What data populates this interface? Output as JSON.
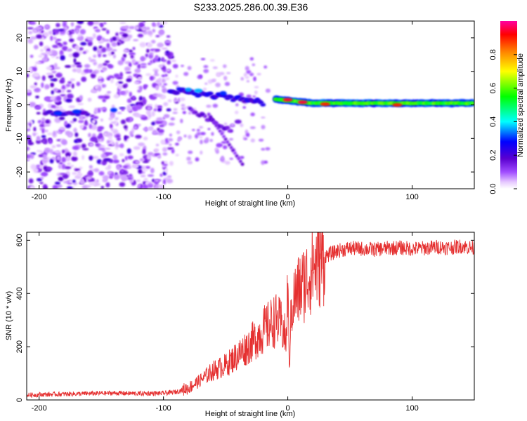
{
  "title": "S233.2025.286.00.39.E36",
  "colors": {
    "snr_line": "#e53030",
    "colormap": [
      "#ffffff",
      "#e6c8ff",
      "#a04cff",
      "#5a00d0",
      "#0000ff",
      "#00ffff",
      "#00ff00",
      "#ffff00",
      "#ff8000",
      "#ff0000",
      "#ff00a0"
    ]
  },
  "chart_data": [
    {
      "type": "heatmap",
      "title": "S233.2025.286.00.39.E36",
      "xlabel": "Height of straight line (km)",
      "ylabel": "Frequency (Hz)",
      "xlim": [
        -210,
        150
      ],
      "ylim": [
        -25,
        25
      ],
      "xticks": [
        -200,
        -100,
        0,
        100
      ],
      "yticks": [
        -20,
        -10,
        0,
        10,
        20
      ],
      "xtick_labels": [
        "-200",
        "-100",
        "0",
        "100"
      ],
      "ytick_labels": [
        "-20",
        "-10",
        "0",
        "10",
        "20"
      ],
      "colorbar": {
        "label": "Normalized spectral amplitude",
        "range": [
          0,
          1
        ],
        "ticks": [
          0.0,
          0.2,
          0.4,
          0.6,
          0.8
        ],
        "tick_labels": [
          "0.0",
          "0.2",
          "0.4",
          "0.6",
          "0.8"
        ]
      },
      "features": [
        {
          "name": "noise-region",
          "x_range": [
            -210,
            -95
          ],
          "y_range": [
            -25,
            25
          ],
          "amplitude": 0.05
        },
        {
          "name": "early-echo",
          "x": -185,
          "y": -2.5,
          "amplitude": 0.3
        },
        {
          "name": "early-echo",
          "x": -170,
          "y": -2.0,
          "amplitude": 0.3
        },
        {
          "name": "echo-branch",
          "x": -80,
          "y": 4.5,
          "amplitude": 0.35
        },
        {
          "name": "echo-branch",
          "x": -55,
          "y": -12,
          "amplitude": 0.1
        },
        {
          "name": "echo-branch",
          "x": -40,
          "y": -5,
          "amplitude": 0.15
        },
        {
          "name": "main-trace",
          "x_range": [
            -10,
            150
          ],
          "y": 0.5,
          "amplitude": 0.8
        },
        {
          "name": "peak",
          "x": 0,
          "y": 1.5,
          "amplitude": 0.95
        },
        {
          "name": "peak",
          "x": 12,
          "y": 0.8,
          "amplitude": 0.95
        },
        {
          "name": "peak",
          "x": 30,
          "y": 0.2,
          "amplitude": 0.9
        },
        {
          "name": "peak",
          "x": 88,
          "y": 0.0,
          "amplitude": 0.9
        }
      ]
    },
    {
      "type": "line",
      "xlabel": "Height of straight line (km)",
      "ylabel": "SNR (10 * v/v)",
      "xlim": [
        -210,
        150
      ],
      "ylim": [
        0,
        630
      ],
      "xticks": [
        -200,
        -100,
        0,
        100
      ],
      "yticks": [
        0,
        200,
        400,
        600
      ],
      "xtick_labels": [
        "-200",
        "-100",
        "0",
        "100"
      ],
      "ytick_labels": [
        "0",
        "200",
        "400",
        "600"
      ],
      "series": [
        {
          "name": "SNR",
          "x": [
            -210,
            -200,
            -180,
            -160,
            -140,
            -120,
            -100,
            -90,
            -80,
            -70,
            -60,
            -50,
            -40,
            -30,
            -20,
            -10,
            -5,
            -1,
            0,
            1,
            3,
            5,
            10,
            15,
            20,
            30,
            40,
            50,
            60,
            70,
            80,
            90,
            100,
            110,
            120,
            130,
            140,
            150
          ],
          "y": [
            18,
            20,
            22,
            24,
            26,
            24,
            25,
            30,
            45,
            75,
            110,
            130,
            170,
            210,
            260,
            300,
            280,
            220,
            480,
            120,
            350,
            380,
            420,
            450,
            500,
            540,
            560,
            570,
            568,
            565,
            570,
            572,
            568,
            570,
            575,
            572,
            578,
            570
          ]
        }
      ]
    }
  ]
}
